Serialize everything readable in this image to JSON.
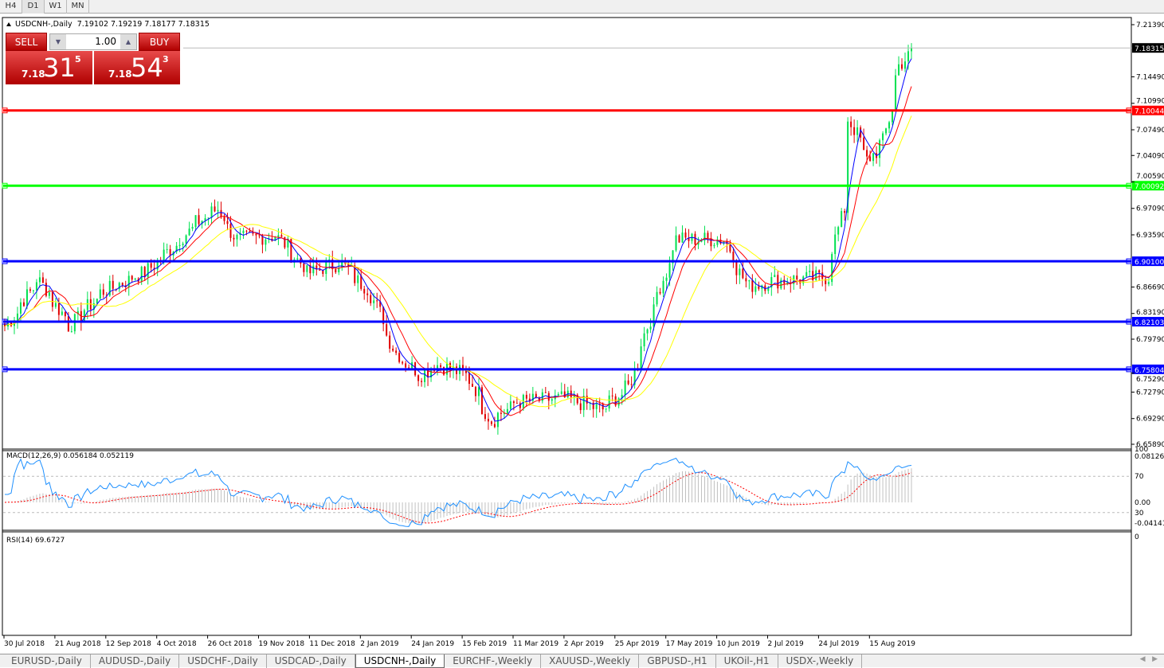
{
  "timeframes": [
    "H4",
    "D1",
    "W1",
    "MN"
  ],
  "active_timeframe": "D1",
  "header": {
    "symbol_line": "USDCNH-,Daily  7.19102 7.19219 7.18177 7.18315"
  },
  "trade_panel": {
    "sell_label": "SELL",
    "buy_label": "BUY",
    "lot": "1.00",
    "sell_prefix": "7.18",
    "sell_big": "31",
    "sell_sup": "5",
    "buy_prefix": "7.18",
    "buy_big": "54",
    "buy_sup": "3"
  },
  "macd_label": "MACD(12,26,9) 0.056184 0.052119",
  "rsi_label": "RSI(14) 69.6727",
  "tabs": [
    "EURUSD-,Daily",
    "AUDUSD-,Daily",
    "USDCHF-,Daily",
    "USDCAD-,Daily",
    "USDCNH-,Daily",
    "EURCHF-,Weekly",
    "XAUUSD-,Weekly",
    "GBPUSD-,H1",
    "UKOil-,H1",
    "USDX-,Weekly"
  ],
  "active_tab": "USDCNH-,Daily",
  "colors": {
    "bull": "#00e050",
    "bear": "#e00000",
    "ma_fast": "#0000ff",
    "ma_mid": "#ff0000",
    "ma_slow": "#ffff00",
    "level_red": "#ff0000",
    "level_green": "#00ff00",
    "level_blue": "#0000ff"
  },
  "chart_data": {
    "type": "candlestick",
    "symbol": "USDCNH-",
    "timeframe": "Daily",
    "price_ticks": [
      "7.21390",
      "7.14490",
      "7.10990",
      "7.07490",
      "7.04090",
      "7.00590",
      "6.97090",
      "6.93590",
      "6.86690",
      "6.83190",
      "6.79790",
      "6.75290",
      "6.72790",
      "6.69290",
      "6.65890"
    ],
    "ylim": [
      6.6589,
      7.2139
    ],
    "current_price": "7.18315",
    "levels": [
      {
        "value": "7.10044",
        "color": "#ff0000"
      },
      {
        "value": "7.00092",
        "color": "#00ff00"
      },
      {
        "value": "6.90100",
        "color": "#0000ff"
      },
      {
        "value": "6.82103",
        "color": "#0000ff"
      },
      {
        "value": "6.75804",
        "color": "#0000ff"
      }
    ],
    "date_ticks": [
      "30 Jul 2018",
      "21 Aug 2018",
      "12 Sep 2018",
      "4 Oct 2018",
      "26 Oct 2018",
      "19 Nov 2018",
      "11 Dec 2018",
      "2 Jan 2019",
      "24 Jan 2019",
      "15 Feb 2019",
      "11 Mar 2019",
      "2 Apr 2019",
      "25 Apr 2019",
      "17 May 2019",
      "10 Jun 2019",
      "2 Jul 2019",
      "24 Jul 2019",
      "15 Aug 2019"
    ],
    "close_approx": [
      [
        "2018-07-30",
        6.815
      ],
      [
        "2018-08-13",
        6.878
      ],
      [
        "2018-08-27",
        6.815
      ],
      [
        "2018-09-10",
        6.86
      ],
      [
        "2018-10-01",
        6.89
      ],
      [
        "2018-10-22",
        6.952
      ],
      [
        "2018-10-31",
        6.97
      ],
      [
        "2018-11-08",
        6.93
      ],
      [
        "2018-11-26",
        6.935
      ],
      [
        "2018-12-10",
        6.885
      ],
      [
        "2018-12-24",
        6.9
      ],
      [
        "2019-01-07",
        6.856
      ],
      [
        "2019-01-17",
        6.78
      ],
      [
        "2019-01-28",
        6.75
      ],
      [
        "2019-02-04",
        6.765
      ],
      [
        "2019-02-18",
        6.75
      ],
      [
        "2019-02-28",
        6.69
      ],
      [
        "2019-03-12",
        6.715
      ],
      [
        "2019-04-02",
        6.72
      ],
      [
        "2019-04-18",
        6.705
      ],
      [
        "2019-04-30",
        6.735
      ],
      [
        "2019-05-09",
        6.825
      ],
      [
        "2019-05-21",
        6.93
      ],
      [
        "2019-06-11",
        6.93
      ],
      [
        "2019-06-21",
        6.867
      ],
      [
        "2019-07-02",
        6.875
      ],
      [
        "2019-07-26",
        6.88
      ],
      [
        "2019-08-02",
        6.97
      ],
      [
        "2019-08-05",
        7.089
      ],
      [
        "2019-08-13",
        7.035
      ],
      [
        "2019-08-20",
        7.06
      ],
      [
        "2019-08-27",
        7.16
      ],
      [
        "2019-09-02",
        7.18315
      ]
    ],
    "macd": {
      "params": "12,26,9",
      "main": "0.056184",
      "signal": "0.052119",
      "ticks": [
        "0.081265",
        "0.00",
        "-0.041412"
      ]
    },
    "rsi": {
      "period": 14,
      "value": "69.6727",
      "ticks": [
        "100",
        "70",
        "30",
        "0"
      ],
      "levels": [
        70,
        30
      ]
    }
  }
}
